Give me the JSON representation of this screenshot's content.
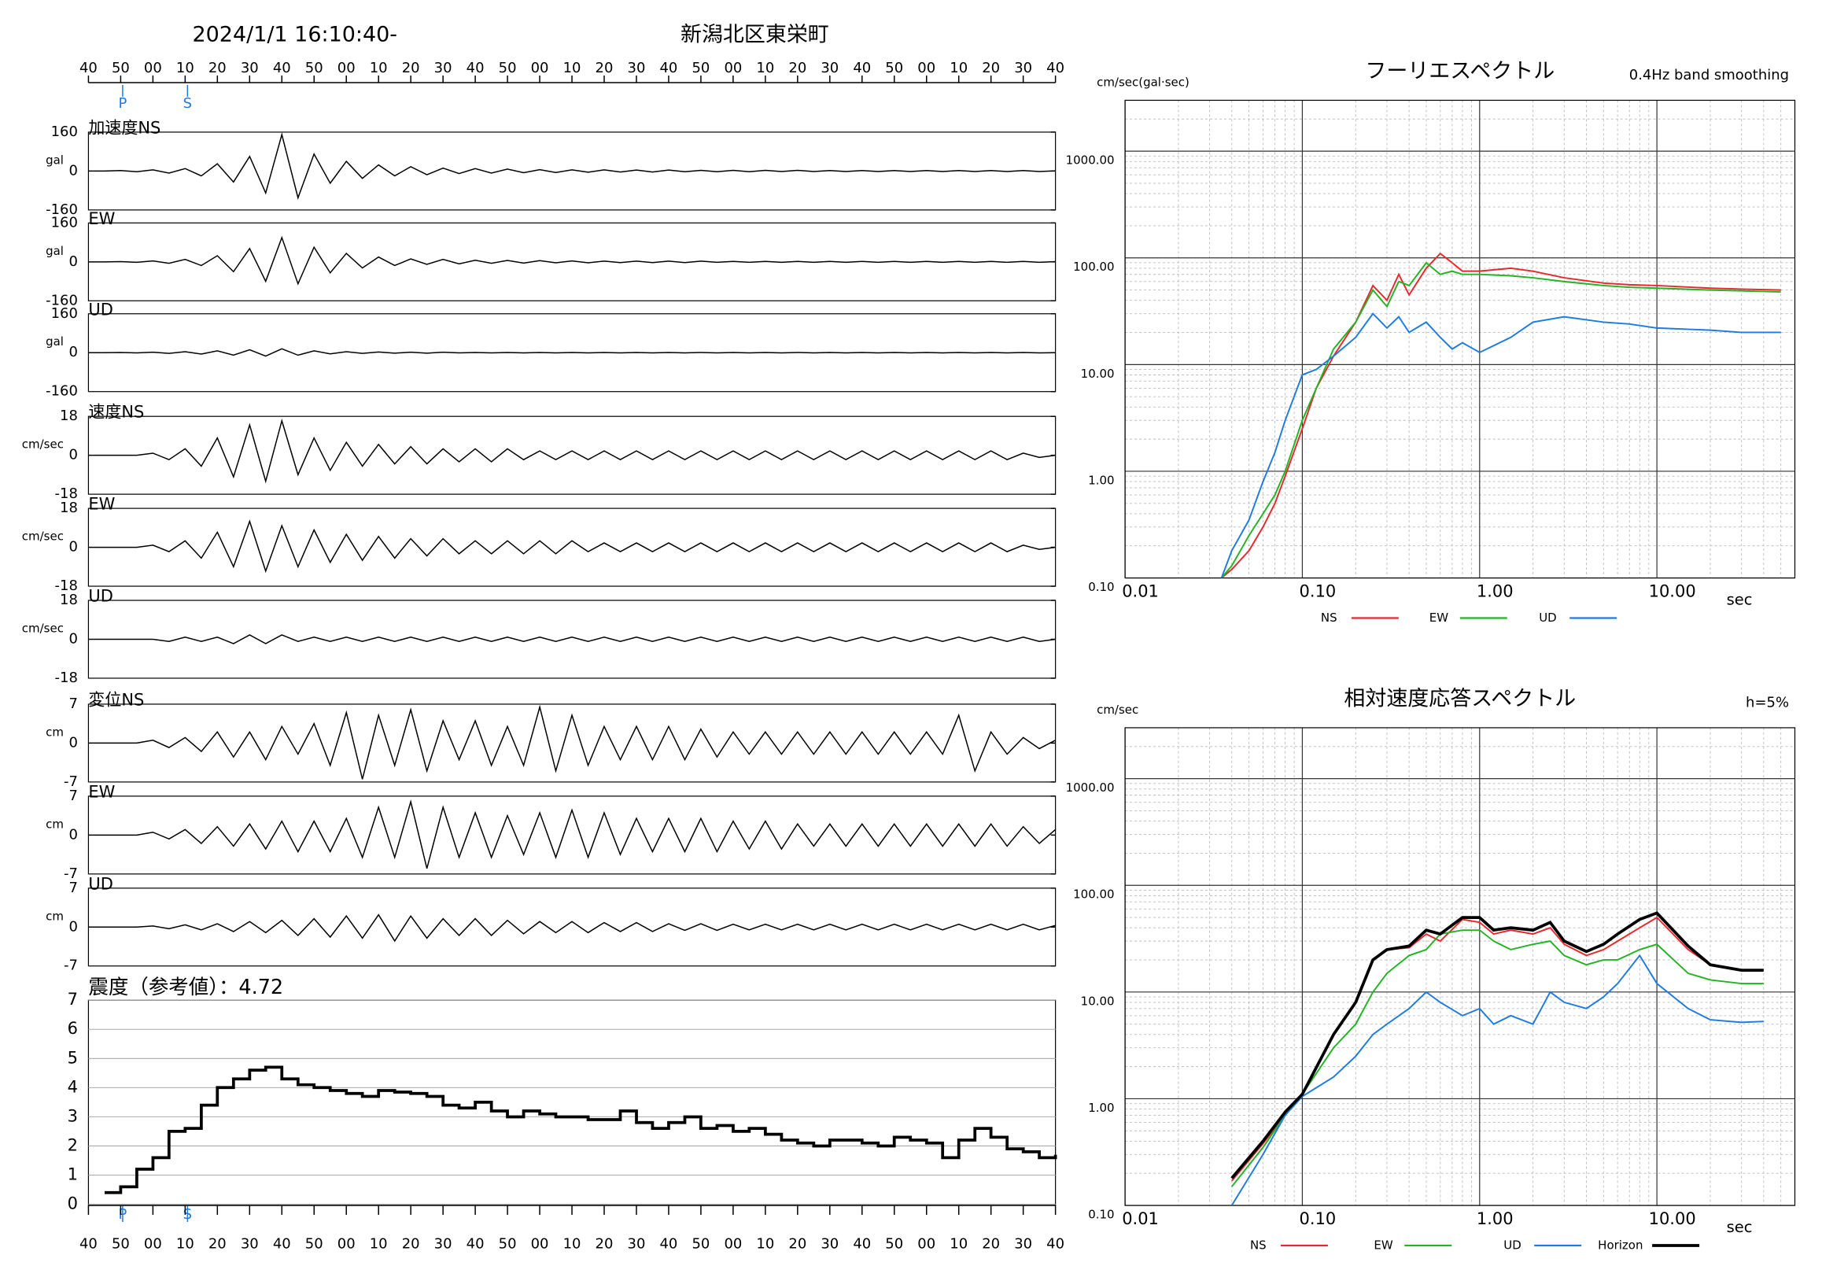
{
  "header": {
    "title": "2024/1/1 16:10:40-",
    "location": "新潟北区東栄町",
    "time_labels": [
      "40",
      "50",
      "00",
      "10",
      "20",
      "30",
      "40",
      "50",
      "00",
      "10",
      "20",
      "30",
      "40",
      "50",
      "00",
      "10",
      "20",
      "30",
      "40",
      "50",
      "00",
      "10",
      "20",
      "30",
      "40",
      "50",
      "00",
      "10",
      "20",
      "30",
      "40"
    ],
    "phases": [
      "P",
      "S"
    ]
  },
  "chart_data": [
    {
      "type": "waveform",
      "title": "加速度NS",
      "unit": "gal",
      "ylim": [
        -160,
        160
      ],
      "yticks": [
        -160,
        0,
        160
      ],
      "color": "#000000",
      "values": [
        0,
        0,
        2,
        -3,
        5,
        -8,
        10,
        -20,
        30,
        -45,
        60,
        -90,
        150,
        -110,
        70,
        -50,
        40,
        -30,
        25,
        -20,
        18,
        -15,
        12,
        -10,
        10,
        -8,
        8,
        -7,
        6,
        -6,
        5,
        -5,
        5,
        -4,
        4,
        -4,
        4,
        -3,
        3,
        -3,
        3,
        -3,
        3,
        -2,
        3,
        -2,
        2,
        -2,
        2,
        -2,
        2,
        -2,
        2,
        -2,
        2,
        -2,
        2,
        -2,
        2,
        -2,
        1
      ]
    },
    {
      "type": "waveform",
      "title": "EW",
      "unit": "gal",
      "ylim": [
        -160,
        160
      ],
      "yticks": [
        -160,
        0,
        160
      ],
      "color": "#000000",
      "values": [
        0,
        0,
        1,
        -2,
        4,
        -6,
        10,
        -15,
        25,
        -40,
        55,
        -80,
        100,
        -90,
        60,
        -45,
        35,
        -25,
        20,
        -15,
        12,
        -10,
        10,
        -8,
        7,
        -6,
        6,
        -5,
        5,
        -4,
        4,
        -4,
        3,
        -3,
        3,
        -3,
        3,
        -3,
        3,
        -2,
        2,
        -2,
        2,
        -2,
        2,
        -2,
        2,
        -2,
        2,
        -2,
        2,
        -2,
        2,
        -2,
        2,
        -2,
        2,
        -2,
        2,
        -2,
        1
      ]
    },
    {
      "type": "waveform",
      "title": "UD",
      "unit": "gal",
      "ylim": [
        -160,
        160
      ],
      "yticks": [
        -160,
        0,
        160
      ],
      "color": "#000000",
      "values": [
        0,
        0,
        1,
        -1,
        2,
        -3,
        4,
        -6,
        8,
        -10,
        12,
        -14,
        16,
        -10,
        8,
        -5,
        4,
        -3,
        3,
        -2,
        2,
        -2,
        2,
        -1,
        1,
        -1,
        1,
        -1,
        1,
        -1,
        1,
        -1,
        1,
        -1,
        1,
        -1,
        1,
        -1,
        1,
        -1,
        1,
        -1,
        1,
        -1,
        1,
        -1,
        1,
        -1,
        1,
        -1,
        1,
        -1,
        1,
        -1,
        1,
        -1,
        1,
        -1,
        1,
        -1,
        0
      ]
    },
    {
      "type": "waveform",
      "title": "速度NS",
      "unit": "cm/sec",
      "ylim": [
        -18,
        18
      ],
      "yticks": [
        -18,
        0,
        18
      ],
      "color": "#000000",
      "values": [
        0,
        0,
        0,
        0,
        1,
        -2,
        3,
        -5,
        8,
        -10,
        14,
        -12,
        16,
        -9,
        8,
        -7,
        6,
        -5,
        5,
        -4,
        4,
        -4,
        3,
        -3,
        3,
        -3,
        3,
        -2,
        2,
        -2,
        2,
        -2,
        2,
        -2,
        2,
        -2,
        2,
        -2,
        2,
        -2,
        2,
        -2,
        2,
        -2,
        2,
        -2,
        2,
        -2,
        2,
        -2,
        2,
        -2,
        2,
        -2,
        2,
        -2,
        2,
        -2,
        1,
        -1,
        0
      ]
    },
    {
      "type": "waveform",
      "title": "EW",
      "unit": "cm/sec",
      "ylim": [
        -18,
        18
      ],
      "yticks": [
        -18,
        0,
        18
      ],
      "color": "#000000",
      "values": [
        0,
        0,
        0,
        0,
        1,
        -2,
        3,
        -5,
        7,
        -9,
        12,
        -11,
        10,
        -9,
        8,
        -7,
        6,
        -6,
        5,
        -5,
        4,
        -4,
        4,
        -3,
        3,
        -3,
        3,
        -3,
        3,
        -3,
        3,
        -2,
        2,
        -2,
        2,
        -2,
        2,
        -2,
        2,
        -2,
        2,
        -2,
        2,
        -2,
        2,
        -2,
        2,
        -2,
        2,
        -2,
        2,
        -2,
        2,
        -2,
        2,
        -2,
        2,
        -2,
        1,
        -1,
        0
      ]
    },
    {
      "type": "waveform",
      "title": "UD",
      "unit": "cm/sec",
      "ylim": [
        -18,
        18
      ],
      "yticks": [
        -18,
        0,
        18
      ],
      "color": "#000000",
      "values": [
        0,
        0,
        0,
        0,
        0,
        -1,
        1,
        -1,
        1,
        -2,
        2,
        -2,
        2,
        -1,
        1,
        -1,
        1,
        -1,
        1,
        -1,
        1,
        -1,
        1,
        -1,
        1,
        -1,
        1,
        -1,
        1,
        -1,
        1,
        -1,
        1,
        -1,
        1,
        -1,
        1,
        -1,
        1,
        -1,
        1,
        -1,
        1,
        -1,
        1,
        -1,
        1,
        -1,
        1,
        -1,
        1,
        -1,
        1,
        -1,
        1,
        -1,
        1,
        -1,
        1,
        -1,
        0
      ]
    },
    {
      "type": "waveform",
      "title": "変位NS",
      "unit": "cm",
      "ylim": [
        -7,
        7
      ],
      "yticks": [
        -7,
        0,
        7
      ],
      "color": "#000000",
      "values": [
        0,
        0,
        0,
        0,
        0.5,
        -0.8,
        1,
        -1.5,
        2,
        -2.5,
        2,
        -3,
        3,
        -2,
        3.5,
        -4,
        5.5,
        -6.5,
        5,
        -4,
        6,
        -5,
        4,
        -3,
        4,
        -4,
        3,
        -4,
        6.5,
        -5,
        5,
        -4,
        3,
        -3,
        3,
        -3,
        3,
        -3,
        2.5,
        -2.5,
        2,
        -2,
        2,
        -2,
        2,
        -2,
        2,
        -2,
        2,
        -2,
        2,
        -2,
        2,
        -2,
        5,
        -5,
        2,
        -2,
        1,
        -1,
        0.5
      ]
    },
    {
      "type": "waveform",
      "title": "EW",
      "unit": "cm",
      "ylim": [
        -7,
        7
      ],
      "yticks": [
        -7,
        0,
        7
      ],
      "color": "#000000",
      "values": [
        0,
        0,
        0,
        0,
        0.5,
        -0.7,
        1,
        -1.5,
        1.5,
        -2,
        2,
        -2.5,
        2.5,
        -3,
        2.5,
        -3,
        3,
        -4,
        5,
        -4,
        6,
        -6,
        5,
        -4,
        4,
        -4,
        3.5,
        -3.5,
        4,
        -4,
        4.5,
        -4,
        4,
        -3.5,
        3,
        -3,
        3,
        -3,
        3,
        -3,
        2.5,
        -2.5,
        2.5,
        -2.5,
        2,
        -2,
        2,
        -2,
        2,
        -2,
        2,
        -2,
        2,
        -2,
        2,
        -2,
        2,
        -2,
        1.5,
        -1.5,
        1
      ]
    },
    {
      "type": "waveform",
      "title": "UD",
      "unit": "cm",
      "ylim": [
        -7,
        7
      ],
      "yticks": [
        -7,
        0,
        7
      ],
      "color": "#000000",
      "values": [
        0,
        0,
        0,
        0,
        0.2,
        -0.3,
        0.4,
        -0.5,
        0.6,
        -0.8,
        1,
        -1,
        1.2,
        -1.5,
        1.5,
        -1.8,
        2,
        -2,
        2.2,
        -2.5,
        2,
        -2,
        1.5,
        -1.5,
        1.5,
        -1.5,
        1.2,
        -1.2,
        1,
        -1,
        1,
        -1,
        0.8,
        -0.8,
        0.8,
        -0.8,
        0.6,
        -0.6,
        0.6,
        -0.6,
        0.5,
        -0.5,
        0.5,
        -0.5,
        0.5,
        -0.5,
        0.5,
        -0.5,
        0.5,
        -0.5,
        0.5,
        -0.5,
        0.5,
        -0.5,
        0.5,
        -0.5,
        0.5,
        -0.5,
        0.5,
        -0.5,
        0.3
      ]
    },
    {
      "type": "step",
      "title": "震度（参考値）：4.72",
      "ylim": [
        0,
        7
      ],
      "yticks": [
        0,
        1,
        2,
        3,
        4,
        5,
        6,
        7
      ],
      "grid": true,
      "color": "#000000",
      "values": [
        null,
        0.4,
        0.6,
        1.2,
        1.6,
        2.5,
        2.6,
        3.4,
        4.0,
        4.3,
        4.6,
        4.7,
        4.3,
        4.1,
        4.0,
        3.9,
        3.8,
        3.7,
        3.9,
        3.85,
        3.8,
        3.7,
        3.4,
        3.3,
        3.5,
        3.2,
        3.0,
        3.2,
        3.1,
        3.0,
        3.0,
        2.9,
        2.9,
        3.2,
        2.8,
        2.6,
        2.8,
        3.0,
        2.6,
        2.7,
        2.5,
        2.6,
        2.4,
        2.2,
        2.1,
        2.0,
        2.2,
        2.2,
        2.1,
        2.0,
        2.3,
        2.2,
        2.1,
        1.6,
        2.2,
        2.6,
        2.3,
        1.9,
        1.8,
        1.6,
        1.7
      ]
    },
    {
      "type": "loglog",
      "title": "フーリエスペクトル",
      "subtitle": "0.4Hz band smoothing",
      "y_label": "cm/sec(gal·sec)",
      "x_label": "sec",
      "xscale": "log",
      "yscale": "log",
      "grid": true,
      "xlim": [
        0.01,
        60
      ],
      "ylim": [
        0.1,
        3000
      ],
      "xticks": [
        0.01,
        {
          "value": 0.1,
          "label": "0.10"
        },
        {
          "value": 1,
          "label": "1.00"
        },
        {
          "value": 10,
          "label": "10.00"
        }
      ],
      "yticks": [
        {
          "value": 0.1,
          "label": "0.10"
        },
        {
          "value": 1,
          "label": "1.00"
        },
        {
          "value": 10,
          "label": "10.00"
        },
        {
          "value": 100,
          "label": "100.00"
        },
        {
          "value": 1000,
          "label": "1000.00"
        }
      ],
      "x": [
        0.035,
        0.04,
        0.05,
        0.06,
        0.07,
        0.08,
        0.1,
        0.12,
        0.15,
        0.2,
        0.25,
        0.3,
        0.35,
        0.4,
        0.5,
        0.6,
        0.7,
        0.8,
        1,
        1.5,
        2,
        3,
        5,
        7,
        10,
        20,
        30,
        50
      ],
      "series": [
        {
          "name": "NS",
          "color": "#e8282d",
          "values": [
            0.1,
            0.12,
            0.18,
            0.3,
            0.5,
            0.9,
            2.5,
            6,
            12,
            25,
            55,
            40,
            70,
            45,
            80,
            110,
            90,
            75,
            75,
            80,
            75,
            65,
            58,
            56,
            55,
            52,
            51,
            50
          ]
        },
        {
          "name": "EW",
          "color": "#22b422",
          "values": [
            0.1,
            0.13,
            0.25,
            0.4,
            0.6,
            1.0,
            3,
            6,
            14,
            25,
            50,
            35,
            60,
            55,
            90,
            70,
            75,
            70,
            70,
            68,
            65,
            60,
            55,
            53,
            52,
            50,
            49,
            48
          ]
        },
        {
          "name": "UD",
          "color": "#1e7be0",
          "values": [
            0.1,
            0.18,
            0.35,
            0.8,
            1.5,
            3,
            8,
            9,
            12,
            18,
            30,
            22,
            28,
            20,
            25,
            18,
            14,
            16,
            13,
            18,
            25,
            28,
            25,
            24,
            22,
            21,
            20,
            20
          ]
        }
      ]
    },
    {
      "type": "loglog",
      "title": "相対速度応答スペクトル",
      "subtitle": "h=5%",
      "y_label": "cm/sec",
      "x_label": "sec",
      "xscale": "log",
      "yscale": "log",
      "grid": true,
      "xlim": [
        0.01,
        60
      ],
      "ylim": [
        0.1,
        3000
      ],
      "xticks": [
        0.01,
        {
          "value": 0.1,
          "label": "0.10"
        },
        {
          "value": 1,
          "label": "1.00"
        },
        {
          "value": 10,
          "label": "10.00"
        }
      ],
      "yticks": [
        {
          "value": 0.1,
          "label": "0.10"
        },
        {
          "value": 1,
          "label": "1.00"
        },
        {
          "value": 10,
          "label": "10.00"
        },
        {
          "value": 100,
          "label": "100.00"
        },
        {
          "value": 1000,
          "label": "1000.00"
        }
      ],
      "x": [
        0.04,
        0.06,
        0.08,
        0.1,
        0.15,
        0.2,
        0.25,
        0.3,
        0.4,
        0.5,
        0.6,
        0.8,
        1,
        1.2,
        1.5,
        2,
        2.5,
        3,
        4,
        5,
        6,
        8,
        10,
        15,
        20,
        30,
        40
      ],
      "series": [
        {
          "name": "NS",
          "color": "#e8282d",
          "values": [
            0.17,
            0.38,
            0.7,
            1.1,
            4,
            8,
            20,
            25,
            26,
            35,
            30,
            48,
            45,
            35,
            38,
            35,
            40,
            28,
            22,
            25,
            30,
            40,
            50,
            25,
            18,
            16,
            16
          ]
        },
        {
          "name": "EW",
          "color": "#22b422",
          "values": [
            0.15,
            0.35,
            0.7,
            1.1,
            3,
            5,
            10,
            15,
            22,
            25,
            35,
            38,
            38,
            30,
            25,
            28,
            30,
            22,
            18,
            20,
            20,
            25,
            28,
            15,
            13,
            12,
            12
          ]
        },
        {
          "name": "UD",
          "color": "#1e7be0",
          "values": [
            0.1,
            0.3,
            0.7,
            1.05,
            1.6,
            2.5,
            4,
            5,
            7,
            10,
            8,
            6,
            7,
            5,
            6,
            5,
            10,
            8,
            7,
            9,
            12,
            22,
            12,
            7,
            5.5,
            5.2,
            5.3
          ]
        },
        {
          "name": "Horizon",
          "color": "#000000",
          "values": [
            0.18,
            0.4,
            0.75,
            1.1,
            4,
            8,
            20,
            25,
            27,
            38,
            35,
            50,
            50,
            38,
            40,
            38,
            45,
            30,
            24,
            28,
            35,
            48,
            55,
            27,
            18,
            16,
            16
          ]
        }
      ]
    }
  ]
}
